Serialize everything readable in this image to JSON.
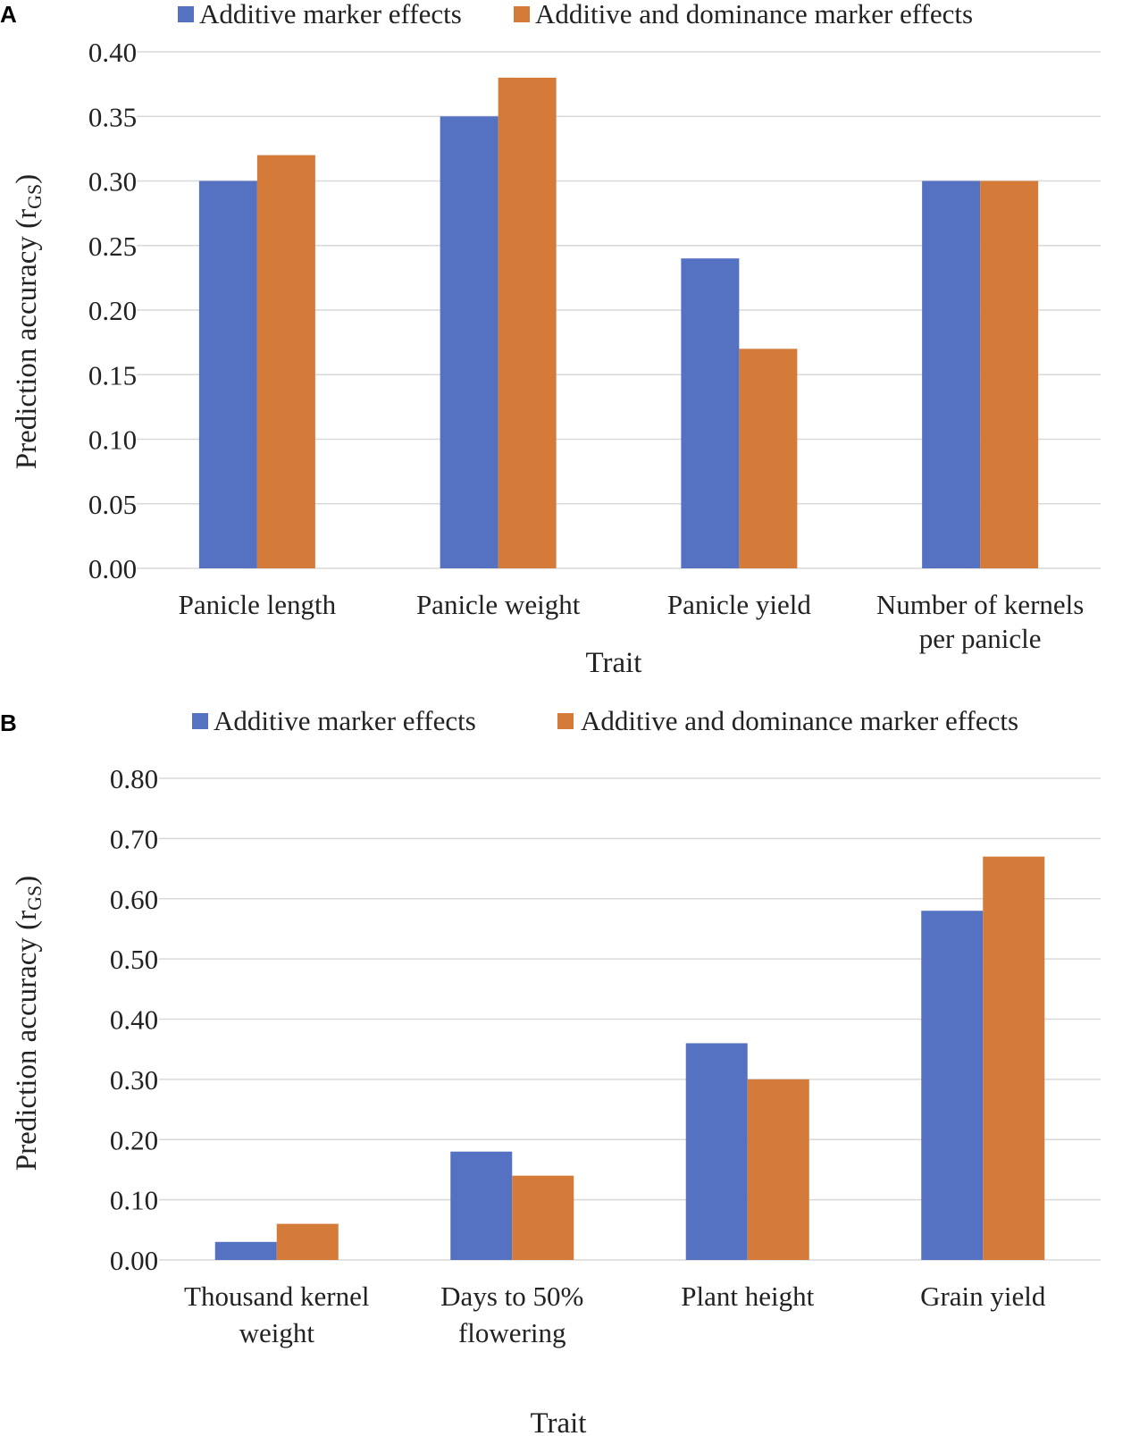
{
  "colors": {
    "additive": "#5571c2",
    "dominance": "#d47b3a"
  },
  "chart_data": [
    {
      "type": "bar",
      "panel": "A",
      "legend": [
        "Additive marker effects",
        "Additive and dominance marker effects"
      ],
      "categories": [
        [
          "Panicle length"
        ],
        [
          "Panicle weight"
        ],
        [
          "Panicle yield"
        ],
        [
          "Number of kernels",
          "per panicle"
        ]
      ],
      "series": [
        {
          "name": "Additive marker effects",
          "values": [
            0.3,
            0.35,
            0.24,
            0.3
          ]
        },
        {
          "name": "Additive and dominance marker effects",
          "values": [
            0.32,
            0.38,
            0.17,
            0.3
          ]
        }
      ],
      "ylim": [
        0,
        0.4
      ],
      "yticks": [
        "0.00",
        "0.05",
        "0.10",
        "0.15",
        "0.20",
        "0.25",
        "0.30",
        "0.35",
        "0.40"
      ],
      "ylabel": "Prediction accuracy (r",
      "ylabel_sub": "GS",
      "ylabel_end": ")",
      "xlabel": "Trait",
      "grid": true
    },
    {
      "type": "bar",
      "panel": "B",
      "legend": [
        "Additive marker effects",
        "Additive and dominance marker effects"
      ],
      "categories": [
        [
          "Thousand kernel",
          "weight"
        ],
        [
          "Days to 50%",
          "flowering"
        ],
        [
          "Plant height"
        ],
        [
          "Grain yield"
        ]
      ],
      "series": [
        {
          "name": "Additive marker effects",
          "values": [
            0.03,
            0.18,
            0.36,
            0.58
          ]
        },
        {
          "name": "Additive and dominance marker effects",
          "values": [
            0.06,
            0.14,
            0.3,
            0.67
          ]
        }
      ],
      "ylim": [
        0,
        0.8
      ],
      "yticks": [
        "0.00",
        "0.10",
        "0.20",
        "0.30",
        "0.40",
        "0.50",
        "0.60",
        "0.70",
        "0.80"
      ],
      "ylabel": "Prediction accuracy (r",
      "ylabel_sub": "GS",
      "ylabel_end": ")",
      "xlabel": "Trait",
      "grid": true
    }
  ]
}
